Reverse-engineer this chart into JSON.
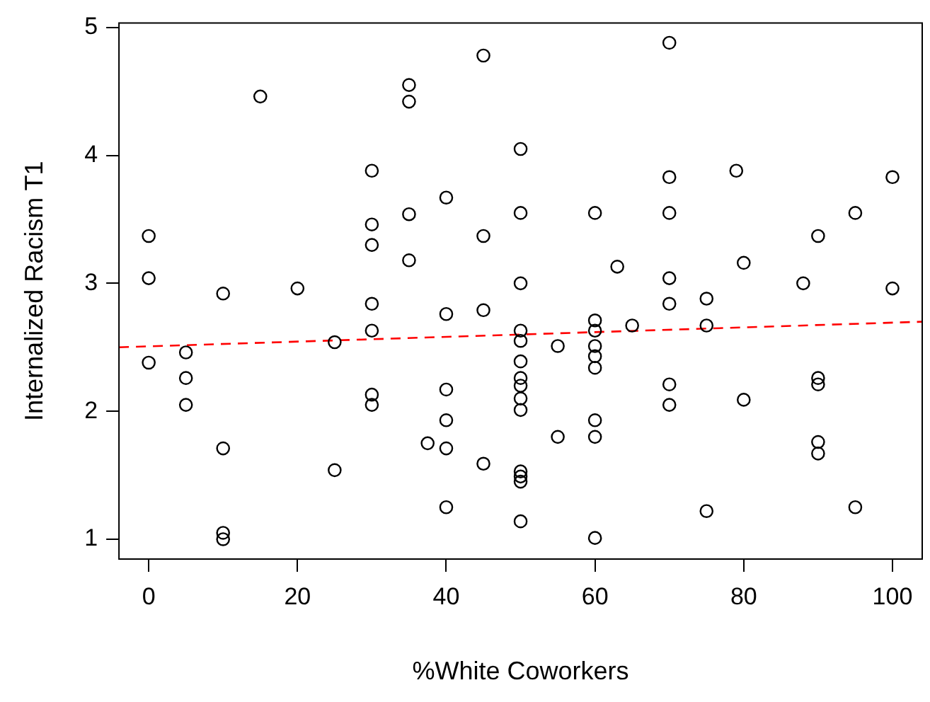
{
  "chart_data": {
    "type": "scatter",
    "xlabel": "%White Coworkers",
    "ylabel": "Internalized Racism T1",
    "xlim": [
      -4,
      104
    ],
    "xticks": [
      0,
      20,
      40,
      60,
      80,
      100
    ],
    "ylim": [
      0.845,
      5.035
    ],
    "yticks": [
      1,
      2,
      3,
      4,
      5
    ],
    "grid": false,
    "marker": "circle",
    "series": [
      {
        "color": "#000000",
        "x": [
          0,
          0,
          0,
          5,
          5,
          5,
          10,
          10,
          10,
          10,
          15,
          20,
          25,
          25,
          30,
          30,
          30,
          30,
          30,
          30,
          30,
          35,
          35,
          35,
          35,
          37.5,
          40,
          40,
          40,
          40,
          40,
          40,
          45,
          45,
          45,
          45,
          50,
          50,
          50,
          50,
          50,
          50,
          50,
          50,
          50,
          50,
          50,
          50,
          50,
          50,
          55,
          55,
          60,
          60,
          60,
          60,
          60,
          60,
          60,
          60,
          60,
          63,
          65,
          70,
          70,
          70,
          70,
          70,
          70,
          70,
          75,
          75,
          75,
          79,
          80,
          80,
          88,
          90,
          90,
          90,
          90,
          90,
          95,
          95,
          100,
          100
        ],
        "values": [
          3.37,
          3.04,
          2.38,
          2.46,
          2.26,
          2.05,
          2.92,
          1.71,
          1.05,
          1.0,
          4.46,
          2.96,
          2.54,
          1.54,
          3.88,
          3.46,
          3.3,
          2.84,
          2.63,
          2.13,
          2.05,
          4.55,
          4.42,
          3.54,
          3.18,
          1.75,
          3.67,
          2.76,
          2.17,
          1.93,
          1.71,
          1.25,
          4.78,
          3.37,
          2.79,
          1.59,
          4.05,
          3.55,
          3.0,
          2.63,
          2.55,
          2.39,
          2.26,
          2.2,
          2.1,
          2.01,
          1.53,
          1.49,
          1.45,
          1.14,
          2.51,
          1.8,
          3.55,
          2.71,
          2.63,
          2.51,
          2.43,
          2.34,
          1.93,
          1.8,
          1.01,
          3.13,
          2.67,
          4.88,
          3.83,
          3.55,
          3.04,
          2.84,
          2.21,
          2.05,
          2.88,
          2.67,
          1.22,
          3.88,
          3.16,
          2.09,
          3.0,
          3.37,
          2.26,
          2.21,
          1.76,
          1.67,
          3.55,
          1.25,
          3.83,
          2.96
        ]
      },
      {
        "type": "line",
        "color": "#ff0000",
        "marker": "none",
        "line_style": "dashed",
        "x": [
          -4,
          104
        ],
        "values": [
          2.5,
          2.7
        ]
      }
    ]
  }
}
